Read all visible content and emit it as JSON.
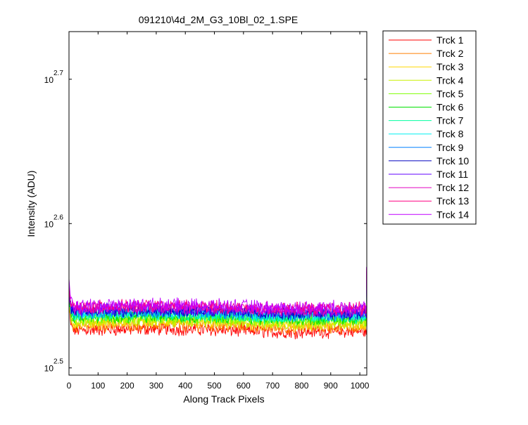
{
  "chart_data": {
    "type": "line",
    "title": "091210\\4d_2M_G3_10Bl_02_1.SPE",
    "xlabel": "Along Track Pixels",
    "ylabel": "Intensity (ADU)",
    "xlim": [
      0,
      1024
    ],
    "ylim_log10": [
      2.495,
      2.733
    ],
    "y_scale": "log",
    "x_ticks": [
      "0",
      "100",
      "200",
      "300",
      "400",
      "500",
      "600",
      "700",
      "800",
      "900",
      "1000"
    ],
    "y_ticks": [
      {
        "base": "10",
        "exponent": "2.5",
        "log10": 2.5
      },
      {
        "base": "10",
        "exponent": "2.6",
        "log10": 2.6
      },
      {
        "base": "10",
        "exponent": "2.7",
        "log10": 2.7
      }
    ],
    "legend_position": "outside-right",
    "grid": false,
    "series": [
      {
        "name": "Trck 1",
        "color": "#ff0000",
        "mean_log10": 2.526,
        "start_log10": 2.548
      },
      {
        "name": "Trck 2",
        "color": "#ff7f00",
        "mean_log10": 2.529,
        "start_log10": 2.549
      },
      {
        "name": "Trck 3",
        "color": "#ffd700",
        "mean_log10": 2.531,
        "start_log10": 2.55
      },
      {
        "name": "Trck 4",
        "color": "#c8f000",
        "mean_log10": 2.532,
        "start_log10": 2.551
      },
      {
        "name": "Trck 5",
        "color": "#7fff00",
        "mean_log10": 2.534,
        "start_log10": 2.552
      },
      {
        "name": "Trck 6",
        "color": "#00e000",
        "mean_log10": 2.535,
        "start_log10": 2.553
      },
      {
        "name": "Trck 7",
        "color": "#00ffa0",
        "mean_log10": 2.536,
        "start_log10": 2.554
      },
      {
        "name": "Trck 8",
        "color": "#00f0f0",
        "mean_log10": 2.537,
        "start_log10": 2.555
      },
      {
        "name": "Trck 9",
        "color": "#0080ff",
        "mean_log10": 2.538,
        "start_log10": 2.556
      },
      {
        "name": "Trck 10",
        "color": "#0000c0",
        "mean_log10": 2.539,
        "start_log10": 2.557
      },
      {
        "name": "Trck 11",
        "color": "#6000ff",
        "mean_log10": 2.54,
        "start_log10": 2.558
      },
      {
        "name": "Trck 12",
        "color": "#e000c0",
        "mean_log10": 2.541,
        "start_log10": 2.559
      },
      {
        "name": "Trck 13",
        "color": "#ff0080",
        "mean_log10": 2.542,
        "start_log10": 2.561
      },
      {
        "name": "Trck 14",
        "color": "#c000ff",
        "mean_log10": 2.543,
        "start_log10": 2.562
      }
    ]
  }
}
